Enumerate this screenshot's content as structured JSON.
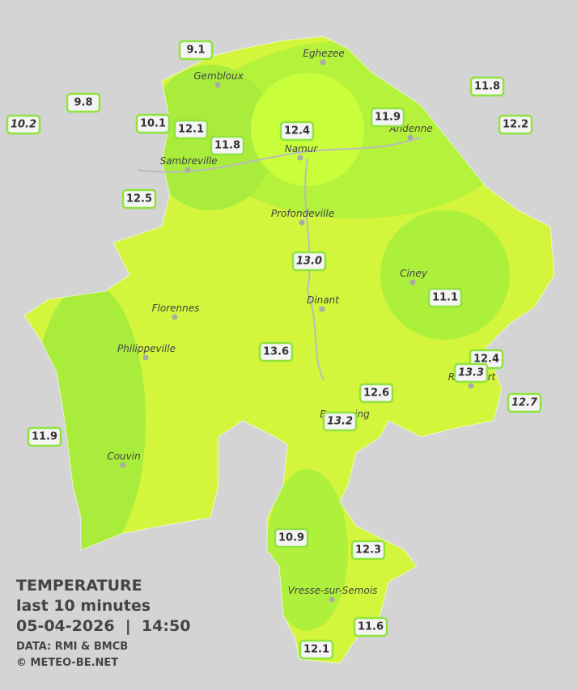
{
  "title": {
    "heading": "TEMPERATURE",
    "subheading": "last 10 minutes",
    "timestamp": "05-04-2026  |  14:50",
    "source": "DATA: RMI & BMCB",
    "credit": "© METEO-BE.NET"
  },
  "cities": [
    "Eghezee",
    "Gembloux",
    "Andenne",
    "Namur",
    "Sambreville",
    "Profondeville",
    "Ciney",
    "Dinant",
    "Florennes",
    "Philippeville",
    "Rochefort",
    "Beauraing",
    "Couvin",
    "Vresse-sur-Semois"
  ],
  "stations": [
    "9.1",
    "9.8",
    "10.2",
    "10.1",
    "12.1",
    "11.8",
    "12.4",
    "11.9",
    "11.8",
    "12.2",
    "12.5",
    "13.0",
    "11.1",
    "13.6",
    "12.4",
    "13.3",
    "12.6",
    "13.2",
    "12.7",
    "11.9",
    "10.9",
    "12.3",
    "11.6",
    "12.1"
  ]
}
